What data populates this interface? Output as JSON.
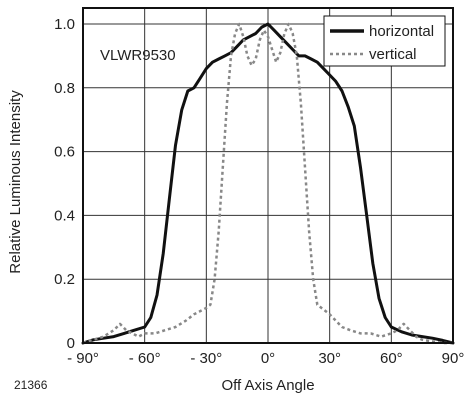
{
  "chart_data": {
    "type": "line",
    "xlabel": "Off Axis Angle",
    "ylabel": "Relative Luminous Intensity",
    "xlim": [
      -90,
      90
    ],
    "ylim": [
      0,
      1.05
    ],
    "grid": true,
    "legend_position": "top-right",
    "x_ticks": [
      -90,
      -60,
      -30,
      0,
      30,
      60,
      90
    ],
    "x_tick_labels": [
      "- 90°",
      "- 60°",
      "- 30°",
      "0°",
      "30°",
      "60°",
      "90°"
    ],
    "y_ticks": [
      0,
      0.2,
      0.4,
      0.6,
      0.8,
      1.0
    ],
    "y_tick_labels": [
      "0",
      "0.2",
      "0.4",
      "0.6",
      "0.8",
      "1.0"
    ],
    "annotation": "VLWR9530",
    "figure_id": "21366",
    "series": [
      {
        "name": "horizontal",
        "style": "solid",
        "color": "#111111",
        "x": [
          -90,
          -85,
          -80,
          -75,
          -70,
          -65,
          -60,
          -57,
          -54,
          -51,
          -48,
          -45,
          -42,
          -39,
          -36,
          -33,
          -30,
          -27,
          -24,
          -21,
          -18,
          -15,
          -12,
          -9,
          -6,
          -3,
          0,
          3,
          6,
          9,
          12,
          15,
          18,
          21,
          24,
          27,
          30,
          33,
          36,
          39,
          42,
          45,
          48,
          51,
          54,
          57,
          60,
          65,
          70,
          75,
          80,
          85,
          90
        ],
        "y": [
          0.0,
          0.01,
          0.015,
          0.02,
          0.03,
          0.04,
          0.05,
          0.08,
          0.15,
          0.28,
          0.45,
          0.62,
          0.73,
          0.79,
          0.8,
          0.83,
          0.86,
          0.88,
          0.89,
          0.9,
          0.91,
          0.93,
          0.95,
          0.96,
          0.97,
          0.99,
          1.0,
          0.98,
          0.96,
          0.94,
          0.92,
          0.9,
          0.9,
          0.89,
          0.88,
          0.86,
          0.84,
          0.82,
          0.79,
          0.74,
          0.68,
          0.55,
          0.4,
          0.25,
          0.14,
          0.08,
          0.05,
          0.035,
          0.025,
          0.02,
          0.015,
          0.008,
          0.0
        ]
      },
      {
        "name": "vertical",
        "style": "dotted",
        "color": "#888888",
        "x": [
          -90,
          -85,
          -80,
          -75,
          -72,
          -69,
          -66,
          -63,
          -60,
          -55,
          -50,
          -45,
          -40,
          -36,
          -33,
          -30,
          -28,
          -26,
          -24,
          -22,
          -20,
          -18,
          -16,
          -14,
          -12,
          -10,
          -8,
          -6,
          -4,
          -2,
          0,
          2,
          4,
          6,
          8,
          10,
          12,
          14,
          16,
          18,
          20,
          22,
          24,
          26,
          28,
          30,
          33,
          36,
          40,
          45,
          50,
          55,
          60,
          63,
          66,
          69,
          72,
          75,
          80,
          85,
          90
        ],
        "y": [
          0.0,
          0.01,
          0.02,
          0.04,
          0.06,
          0.04,
          0.03,
          0.02,
          0.03,
          0.03,
          0.04,
          0.05,
          0.07,
          0.09,
          0.1,
          0.11,
          0.12,
          0.2,
          0.35,
          0.55,
          0.75,
          0.9,
          0.97,
          1.0,
          0.96,
          0.9,
          0.87,
          0.89,
          0.95,
          0.98,
          0.96,
          0.92,
          0.88,
          0.91,
          0.97,
          1.0,
          0.97,
          0.9,
          0.75,
          0.55,
          0.35,
          0.2,
          0.12,
          0.11,
          0.1,
          0.09,
          0.07,
          0.05,
          0.04,
          0.03,
          0.03,
          0.02,
          0.03,
          0.04,
          0.06,
          0.04,
          0.02,
          0.01,
          0.005,
          0.0,
          0.0
        ]
      }
    ]
  }
}
